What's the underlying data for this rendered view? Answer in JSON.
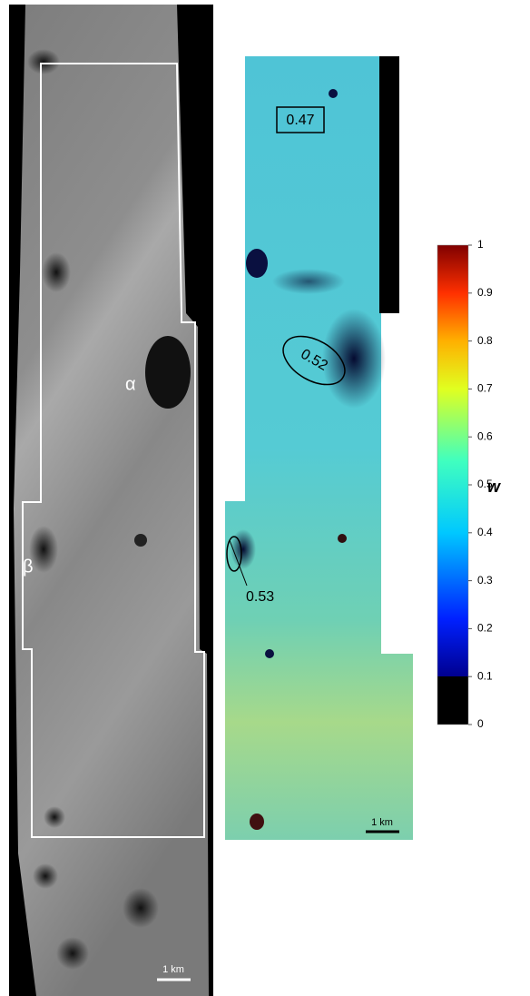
{
  "left_panel": {
    "labels": [
      "α",
      "β"
    ],
    "scale_bar": "1 km"
  },
  "right_panel": {
    "labels": [
      "0.47",
      "0.52",
      "0.53"
    ],
    "scale_bar": "1 km"
  },
  "colorbar": {
    "label": "w",
    "lim": [
      0,
      1
    ],
    "ticks": [
      0,
      0.1,
      0.2,
      0.3,
      0.4,
      0.5,
      0.6,
      0.7,
      0.8,
      0.9,
      1
    ]
  }
}
